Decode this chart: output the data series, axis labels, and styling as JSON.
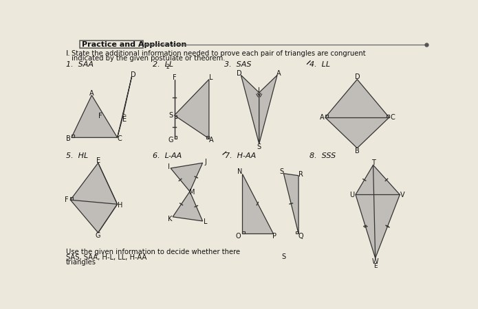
{
  "title": "Practice and Application",
  "page_bg": "#ede8dc",
  "fill_color": "#c0bdb8",
  "edge_color": "#333333",
  "text_color": "#111111",
  "labels": {
    "1": "1.  SAA",
    "2": "2.  LL",
    "3": "3.  SAS",
    "4": "4.  LL",
    "5": "5.  HL",
    "6": "6.  L-AA",
    "7": "7.  H-AA",
    "8": "8.  SSS"
  },
  "bottom_line1": "Use the given information to decide whether there",
  "bottom_line2": "SAS, SAA, H-L, LL, H-AA",
  "bottom_line3": "triangles"
}
